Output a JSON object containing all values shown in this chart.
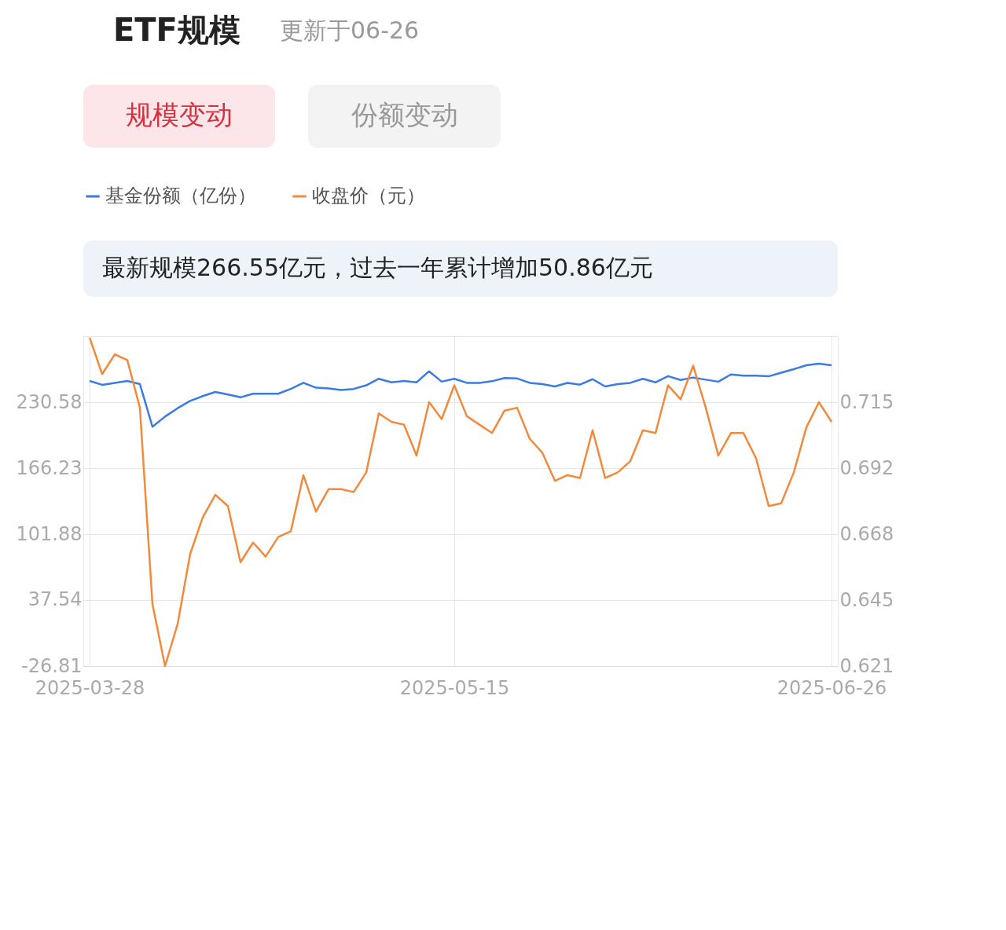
{
  "chart_data": {
    "type": "line",
    "title": "ETF规模",
    "subtitle": "更新于06-26",
    "annotations": [
      "规模变动",
      "份额变动",
      "最新规模266.55亿元，过去一年累计增加50.86亿元"
    ],
    "categories": [
      "2025-03-28",
      null,
      null,
      null,
      null,
      null,
      null,
      null,
      null,
      null,
      null,
      null,
      null,
      null,
      null,
      null,
      null,
      null,
      null,
      null,
      null,
      null,
      null,
      null,
      null,
      null,
      null,
      null,
      null,
      "2025-05-15",
      null,
      null,
      null,
      null,
      null,
      null,
      null,
      null,
      null,
      null,
      null,
      null,
      null,
      null,
      null,
      null,
      null,
      null,
      null,
      null,
      null,
      null,
      null,
      null,
      null,
      null,
      null,
      null,
      null,
      "2025-06-26"
    ],
    "series": [
      {
        "name": "基金份额（亿份）",
        "color": "#3b7be3",
        "values": [
          251.3,
          247.5,
          249.4,
          251.3,
          248.2,
          206.6,
          216.5,
          224.7,
          231.8,
          236.5,
          240.5,
          238.1,
          235.3,
          238.8,
          238.8,
          238.8,
          243.5,
          249.4,
          244.7,
          244.0,
          242.4,
          243.5,
          247.0,
          253.4,
          249.9,
          251.3,
          249.9,
          260.7,
          250.6,
          253.4,
          249.4,
          249.4,
          251.0,
          254.1,
          253.7,
          249.4,
          248.2,
          245.9,
          249.4,
          247.7,
          253.0,
          245.9,
          248.2,
          249.4,
          253.4,
          249.9,
          256.0,
          252.2,
          254.6,
          252.5,
          250.6,
          257.6,
          256.5,
          256.5,
          255.8,
          259.3,
          262.8,
          266.6,
          268.2,
          266.6
        ]
      },
      {
        "name": "收盘价（元）",
        "color": "#f08a3c",
        "axis": "y2",
        "values": [
          0.738,
          0.725,
          0.732,
          0.73,
          0.713,
          0.643,
          0.621,
          0.636,
          0.661,
          0.674,
          0.682,
          0.678,
          0.658,
          0.665,
          0.66,
          0.667,
          0.669,
          0.689,
          0.676,
          0.684,
          0.684,
          0.683,
          0.69,
          0.711,
          0.708,
          0.707,
          0.696,
          0.715,
          0.709,
          0.721,
          0.71,
          0.707,
          0.704,
          0.712,
          0.713,
          0.702,
          0.697,
          0.687,
          0.689,
          0.688,
          0.705,
          0.688,
          0.69,
          0.694,
          0.705,
          0.704,
          0.721,
          0.716,
          0.728,
          0.713,
          0.696,
          0.704,
          0.704,
          0.695,
          0.678,
          0.679,
          0.69,
          0.706,
          0.715,
          0.708
        ]
      }
    ],
    "ylim": [
      -26.81,
      294.93
    ],
    "yticks": [
      -26.81,
      37.54,
      101.88,
      166.23,
      230.58
    ],
    "y2lim": [
      0.621,
      0.7385
    ],
    "y2ticks": [
      0.621,
      {
        "value": 0.6445,
        "label": "0.645"
      },
      0.668,
      {
        "value": 0.6915,
        "label": "0.692"
      },
      0.715
    ],
    "grid": true,
    "legend": "top"
  }
}
